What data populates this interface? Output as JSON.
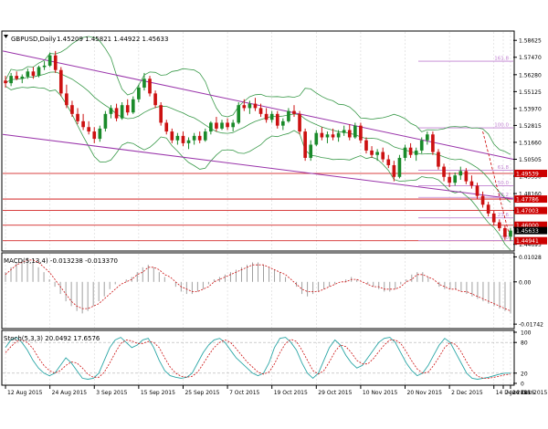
{
  "chart_data": [
    {
      "type": "candlestick",
      "title": "GBPUSD,Daily",
      "ohlc_readout": [
        "1.45209",
        "1.45821",
        "1.44922",
        "1.45633"
      ],
      "price_ticks": [
        "1.58625",
        "1.57470",
        "1.56280",
        "1.55125",
        "1.53970",
        "1.52815",
        "1.51660",
        "1.50505",
        "1.49350",
        "1.48160",
        "1.47005",
        "1.45850",
        "1.44695"
      ],
      "ylim": [
        1.443,
        1.592
      ],
      "price_labels": [
        {
          "text": "1.49539",
          "price": 1.49539,
          "color": "#cc0000"
        },
        {
          "text": "1.47786",
          "price": 1.47786,
          "color": "#cc0000"
        },
        {
          "text": "1.47003",
          "price": 1.47003,
          "color": "#cc0000"
        },
        {
          "text": "1.46000",
          "price": 1.46,
          "color": "#cc0000"
        },
        {
          "text": "1.45633",
          "price": 1.45633,
          "color": "#000000"
        },
        {
          "text": "1.44941",
          "price": 1.44941,
          "color": "#cc0000"
        }
      ],
      "fib_labels": [
        {
          "text": "161.8",
          "price": 1.572
        },
        {
          "text": "100.0",
          "price": 1.5265
        },
        {
          "text": "61.8",
          "price": 1.4975
        },
        {
          "text": "50.0",
          "price": 1.487
        },
        {
          "text": "38.2",
          "price": 1.479
        },
        {
          "text": "23.6",
          "price": 1.465
        },
        {
          "text": "0.0",
          "price": 1.4495
        }
      ],
      "candles": [
        {
          "o": 1.5588,
          "h": 1.562,
          "l": 1.554,
          "c": 1.557
        },
        {
          "o": 1.557,
          "h": 1.564,
          "l": 1.555,
          "c": 1.562
        },
        {
          "o": 1.562,
          "h": 1.565,
          "l": 1.559,
          "c": 1.56
        },
        {
          "o": 1.56,
          "h": 1.563,
          "l": 1.557,
          "c": 1.5615
        },
        {
          "o": 1.5615,
          "h": 1.567,
          "l": 1.56,
          "c": 1.565
        },
        {
          "o": 1.565,
          "h": 1.568,
          "l": 1.56,
          "c": 1.562
        },
        {
          "o": 1.562,
          "h": 1.569,
          "l": 1.561,
          "c": 1.568
        },
        {
          "o": 1.568,
          "h": 1.572,
          "l": 1.566,
          "c": 1.569
        },
        {
          "o": 1.569,
          "h": 1.578,
          "l": 1.568,
          "c": 1.576
        },
        {
          "o": 1.576,
          "h": 1.579,
          "l": 1.564,
          "c": 1.566
        },
        {
          "o": 1.566,
          "h": 1.568,
          "l": 1.548,
          "c": 1.55
        },
        {
          "o": 1.55,
          "h": 1.556,
          "l": 1.54,
          "c": 1.542
        },
        {
          "o": 1.542,
          "h": 1.545,
          "l": 1.534,
          "c": 1.536
        },
        {
          "o": 1.536,
          "h": 1.54,
          "l": 1.529,
          "c": 1.531
        },
        {
          "o": 1.531,
          "h": 1.536,
          "l": 1.525,
          "c": 1.527
        },
        {
          "o": 1.527,
          "h": 1.531,
          "l": 1.522,
          "c": 1.524
        },
        {
          "o": 1.524,
          "h": 1.527,
          "l": 1.516,
          "c": 1.519
        },
        {
          "o": 1.519,
          "h": 1.528,
          "l": 1.517,
          "c": 1.526
        },
        {
          "o": 1.526,
          "h": 1.538,
          "l": 1.524,
          "c": 1.536
        },
        {
          "o": 1.536,
          "h": 1.542,
          "l": 1.533,
          "c": 1.54
        },
        {
          "o": 1.54,
          "h": 1.543,
          "l": 1.531,
          "c": 1.533
        },
        {
          "o": 1.533,
          "h": 1.544,
          "l": 1.532,
          "c": 1.542
        },
        {
          "o": 1.542,
          "h": 1.546,
          "l": 1.535,
          "c": 1.537
        },
        {
          "o": 1.537,
          "h": 1.548,
          "l": 1.536,
          "c": 1.546
        },
        {
          "o": 1.546,
          "h": 1.556,
          "l": 1.544,
          "c": 1.554
        },
        {
          "o": 1.554,
          "h": 1.564,
          "l": 1.552,
          "c": 1.56
        },
        {
          "o": 1.56,
          "h": 1.562,
          "l": 1.548,
          "c": 1.55
        },
        {
          "o": 1.55,
          "h": 1.552,
          "l": 1.54,
          "c": 1.542
        },
        {
          "o": 1.542,
          "h": 1.544,
          "l": 1.528,
          "c": 1.53
        },
        {
          "o": 1.53,
          "h": 1.532,
          "l": 1.522,
          "c": 1.524
        },
        {
          "o": 1.524,
          "h": 1.526,
          "l": 1.516,
          "c": 1.518
        },
        {
          "o": 1.518,
          "h": 1.523,
          "l": 1.515,
          "c": 1.521
        },
        {
          "o": 1.521,
          "h": 1.524,
          "l": 1.514,
          "c": 1.516
        },
        {
          "o": 1.516,
          "h": 1.52,
          "l": 1.512,
          "c": 1.518
        },
        {
          "o": 1.518,
          "h": 1.523,
          "l": 1.515,
          "c": 1.521
        },
        {
          "o": 1.521,
          "h": 1.524,
          "l": 1.516,
          "c": 1.518
        },
        {
          "o": 1.518,
          "h": 1.526,
          "l": 1.517,
          "c": 1.524
        },
        {
          "o": 1.524,
          "h": 1.531,
          "l": 1.522,
          "c": 1.53
        },
        {
          "o": 1.53,
          "h": 1.534,
          "l": 1.524,
          "c": 1.526
        },
        {
          "o": 1.526,
          "h": 1.532,
          "l": 1.525,
          "c": 1.53
        },
        {
          "o": 1.53,
          "h": 1.533,
          "l": 1.525,
          "c": 1.527
        },
        {
          "o": 1.527,
          "h": 1.532,
          "l": 1.524,
          "c": 1.53
        },
        {
          "o": 1.53,
          "h": 1.544,
          "l": 1.529,
          "c": 1.542
        },
        {
          "o": 1.542,
          "h": 1.546,
          "l": 1.538,
          "c": 1.54
        },
        {
          "o": 1.54,
          "h": 1.545,
          "l": 1.536,
          "c": 1.543
        },
        {
          "o": 1.543,
          "h": 1.547,
          "l": 1.538,
          "c": 1.54
        },
        {
          "o": 1.54,
          "h": 1.543,
          "l": 1.534,
          "c": 1.536
        },
        {
          "o": 1.536,
          "h": 1.54,
          "l": 1.53,
          "c": 1.532
        },
        {
          "o": 1.532,
          "h": 1.538,
          "l": 1.53,
          "c": 1.536
        },
        {
          "o": 1.536,
          "h": 1.538,
          "l": 1.526,
          "c": 1.528
        },
        {
          "o": 1.528,
          "h": 1.533,
          "l": 1.525,
          "c": 1.531
        },
        {
          "o": 1.531,
          "h": 1.54,
          "l": 1.53,
          "c": 1.538
        },
        {
          "o": 1.538,
          "h": 1.542,
          "l": 1.534,
          "c": 1.536
        },
        {
          "o": 1.536,
          "h": 1.538,
          "l": 1.522,
          "c": 1.524
        },
        {
          "o": 1.524,
          "h": 1.526,
          "l": 1.504,
          "c": 1.506
        },
        {
          "o": 1.506,
          "h": 1.518,
          "l": 1.504,
          "c": 1.515
        },
        {
          "o": 1.515,
          "h": 1.525,
          "l": 1.514,
          "c": 1.523
        },
        {
          "o": 1.523,
          "h": 1.527,
          "l": 1.518,
          "c": 1.52
        },
        {
          "o": 1.52,
          "h": 1.524,
          "l": 1.516,
          "c": 1.522
        },
        {
          "o": 1.522,
          "h": 1.526,
          "l": 1.518,
          "c": 1.52
        },
        {
          "o": 1.52,
          "h": 1.525,
          "l": 1.517,
          "c": 1.523
        },
        {
          "o": 1.523,
          "h": 1.528,
          "l": 1.521,
          "c": 1.525
        },
        {
          "o": 1.525,
          "h": 1.529,
          "l": 1.518,
          "c": 1.52
        },
        {
          "o": 1.52,
          "h": 1.53,
          "l": 1.519,
          "c": 1.528
        },
        {
          "o": 1.528,
          "h": 1.53,
          "l": 1.516,
          "c": 1.518
        },
        {
          "o": 1.518,
          "h": 1.52,
          "l": 1.509,
          "c": 1.511
        },
        {
          "o": 1.511,
          "h": 1.514,
          "l": 1.506,
          "c": 1.508
        },
        {
          "o": 1.508,
          "h": 1.512,
          "l": 1.504,
          "c": 1.51
        },
        {
          "o": 1.51,
          "h": 1.513,
          "l": 1.503,
          "c": 1.505
        },
        {
          "o": 1.505,
          "h": 1.508,
          "l": 1.499,
          "c": 1.501
        },
        {
          "o": 1.501,
          "h": 1.504,
          "l": 1.49,
          "c": 1.493
        },
        {
          "o": 1.493,
          "h": 1.508,
          "l": 1.492,
          "c": 1.506
        },
        {
          "o": 1.506,
          "h": 1.515,
          "l": 1.504,
          "c": 1.513
        },
        {
          "o": 1.513,
          "h": 1.516,
          "l": 1.506,
          "c": 1.508
        },
        {
          "o": 1.508,
          "h": 1.513,
          "l": 1.504,
          "c": 1.511
        },
        {
          "o": 1.511,
          "h": 1.52,
          "l": 1.509,
          "c": 1.518
        },
        {
          "o": 1.518,
          "h": 1.524,
          "l": 1.515,
          "c": 1.522
        },
        {
          "o": 1.522,
          "h": 1.524,
          "l": 1.508,
          "c": 1.51
        },
        {
          "o": 1.51,
          "h": 1.512,
          "l": 1.498,
          "c": 1.5
        },
        {
          "o": 1.5,
          "h": 1.502,
          "l": 1.49,
          "c": 1.493
        },
        {
          "o": 1.493,
          "h": 1.496,
          "l": 1.486,
          "c": 1.489
        },
        {
          "o": 1.489,
          "h": 1.496,
          "l": 1.487,
          "c": 1.494
        },
        {
          "o": 1.494,
          "h": 1.5,
          "l": 1.491,
          "c": 1.497
        },
        {
          "o": 1.497,
          "h": 1.499,
          "l": 1.488,
          "c": 1.49
        },
        {
          "o": 1.49,
          "h": 1.494,
          "l": 1.485,
          "c": 1.487
        },
        {
          "o": 1.487,
          "h": 1.489,
          "l": 1.478,
          "c": 1.48
        },
        {
          "o": 1.48,
          "h": 1.483,
          "l": 1.472,
          "c": 1.474
        },
        {
          "o": 1.474,
          "h": 1.476,
          "l": 1.466,
          "c": 1.468
        },
        {
          "o": 1.468,
          "h": 1.47,
          "l": 1.46,
          "c": 1.462
        },
        {
          "o": 1.462,
          "h": 1.464,
          "l": 1.456,
          "c": 1.458
        },
        {
          "o": 1.458,
          "h": 1.46,
          "l": 1.45,
          "c": 1.452
        },
        {
          "o": 1.4521,
          "h": 1.4582,
          "l": 1.4492,
          "c": 1.4563
        }
      ]
    },
    {
      "type": "macd",
      "title": "MACD(5,13,4) -0.013238 -0.013370",
      "ticks": [
        "0.01028",
        "0.00",
        "-0.01742"
      ],
      "ylim": [
        -0.0185,
        0.0112
      ],
      "histogram": [
        0.004,
        0.006,
        0.008,
        0.009,
        0.01,
        0.008,
        0.006,
        0.004,
        0.001,
        -0.002,
        -0.005,
        -0.008,
        -0.01,
        -0.012,
        -0.013,
        -0.012,
        -0.01,
        -0.008,
        -0.006,
        -0.003,
        -0.001,
        0.0,
        0.001,
        0.002,
        0.004,
        0.006,
        0.007,
        0.006,
        0.004,
        0.002,
        0.0,
        -0.002,
        -0.004,
        -0.005,
        -0.005,
        -0.004,
        -0.003,
        -0.001,
        0.001,
        0.002,
        0.003,
        0.004,
        0.005,
        0.006,
        0.007,
        0.008,
        0.008,
        0.007,
        0.006,
        0.005,
        0.004,
        0.002,
        0.0,
        -0.002,
        -0.005,
        -0.006,
        -0.005,
        -0.004,
        -0.003,
        -0.002,
        -0.001,
        0.0,
        0.001,
        0.002,
        0.001,
        0.0,
        -0.001,
        -0.002,
        -0.003,
        -0.004,
        -0.004,
        -0.003,
        -0.001,
        0.001,
        0.003,
        0.004,
        0.004,
        0.002,
        0.0,
        -0.002,
        -0.003,
        -0.003,
        -0.003,
        -0.004,
        -0.005,
        -0.006,
        -0.007,
        -0.008,
        -0.009,
        -0.01,
        -0.011,
        -0.012,
        -0.013
      ],
      "signal": [
        0.003,
        0.005,
        0.007,
        0.008,
        0.009,
        0.009,
        0.008,
        0.006,
        0.004,
        0.001,
        -0.002,
        -0.005,
        -0.008,
        -0.01,
        -0.011,
        -0.011,
        -0.01,
        -0.009,
        -0.007,
        -0.005,
        -0.003,
        -0.001,
        0.0,
        0.001,
        0.003,
        0.004,
        0.006,
        0.006,
        0.005,
        0.003,
        0.002,
        0.0,
        -0.002,
        -0.003,
        -0.004,
        -0.004,
        -0.003,
        -0.002,
        0.0,
        0.001,
        0.002,
        0.003,
        0.004,
        0.005,
        0.006,
        0.007,
        0.007,
        0.007,
        0.006,
        0.005,
        0.004,
        0.003,
        0.001,
        -0.001,
        -0.003,
        -0.004,
        -0.004,
        -0.004,
        -0.003,
        -0.002,
        -0.001,
        0.0,
        0.0,
        0.001,
        0.001,
        0.0,
        -0.001,
        -0.002,
        -0.002,
        -0.003,
        -0.003,
        -0.003,
        -0.002,
        0.0,
        0.001,
        0.003,
        0.003,
        0.002,
        0.001,
        -0.001,
        -0.002,
        -0.003,
        -0.003,
        -0.004,
        -0.004,
        -0.005,
        -0.006,
        -0.007,
        -0.008,
        -0.009,
        -0.01,
        -0.011,
        -0.012
      ]
    },
    {
      "type": "stochastic",
      "title": "Stoch(5,3,3) 20.0492 17.6576",
      "ticks": [
        "100",
        "80",
        "20",
        "0"
      ],
      "ylim": [
        0,
        100
      ],
      "k": [
        70,
        85,
        90,
        80,
        65,
        45,
        30,
        20,
        15,
        20,
        35,
        50,
        40,
        25,
        10,
        8,
        10,
        20,
        45,
        70,
        85,
        90,
        80,
        70,
        75,
        85,
        88,
        70,
        45,
        25,
        15,
        12,
        10,
        12,
        20,
        40,
        60,
        75,
        85,
        88,
        80,
        65,
        50,
        40,
        30,
        20,
        15,
        20,
        40,
        70,
        88,
        90,
        80,
        65,
        40,
        20,
        10,
        20,
        45,
        70,
        85,
        75,
        55,
        40,
        30,
        35,
        50,
        65,
        80,
        88,
        90,
        80,
        60,
        40,
        25,
        15,
        20,
        35,
        55,
        75,
        88,
        80,
        60,
        40,
        20,
        10,
        8,
        10,
        12,
        15,
        18,
        20,
        20
      ],
      "d": [
        60,
        72,
        82,
        85,
        80,
        68,
        50,
        35,
        25,
        20,
        25,
        35,
        42,
        40,
        30,
        18,
        12,
        12,
        22,
        40,
        60,
        78,
        85,
        83,
        78,
        78,
        82,
        80,
        70,
        50,
        32,
        20,
        14,
        12,
        14,
        22,
        38,
        55,
        70,
        80,
        85,
        80,
        68,
        55,
        42,
        32,
        22,
        18,
        22,
        38,
        60,
        78,
        86,
        82,
        65,
        45,
        25,
        18,
        25,
        42,
        62,
        75,
        72,
        60,
        45,
        38,
        38,
        48,
        62,
        75,
        85,
        85,
        78,
        62,
        44,
        28,
        20,
        22,
        35,
        52,
        70,
        80,
        76,
        62,
        42,
        25,
        14,
        10,
        10,
        12,
        14,
        17,
        18
      ]
    }
  ],
  "date_labels": [
    "12 Aug 2015",
    "24 Aug 2015",
    "3 Sep 2015",
    "15 Sep 2015",
    "25 Sep 2015",
    "7 Oct 2015",
    "19 Oct 2015",
    "29 Oct 2015",
    "10 Nov 2015",
    "20 Nov 2015",
    "2 Dec 2015",
    "14 Dec 2015",
    "24 Dec 2015",
    "7 Jan 2016"
  ],
  "colors": {
    "bull": "#1a8a2a",
    "bear": "#cc1111",
    "trend": "#9933aa",
    "band": "#3a9a4a",
    "level": "#cc0000",
    "fib": "#c080d0"
  }
}
